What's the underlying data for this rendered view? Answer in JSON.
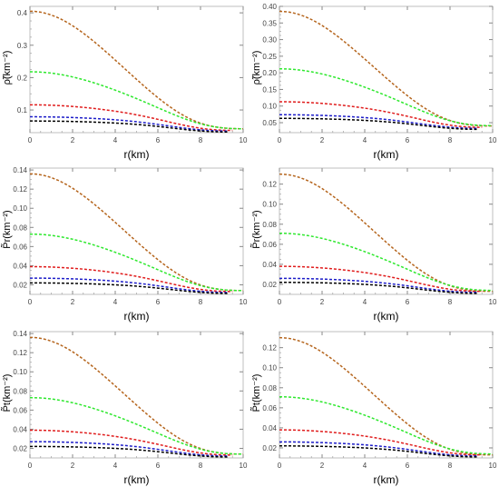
{
  "colors": {
    "brown": "#b5651d",
    "green": "#2ee82e",
    "red": "#e01c1c",
    "blue": "#1c1cc8",
    "black": "#000000",
    "frame": "#bfbfbf",
    "grid": "#e6e6e6"
  },
  "chart_data": [
    {
      "type": "line",
      "xlabel": "r(km)",
      "ylabel": "ρ̃(km⁻²)",
      "xlim": [
        0,
        10
      ],
      "ylim": [
        0.03,
        0.42
      ],
      "xticks": [
        0,
        2,
        4,
        6,
        8,
        10
      ],
      "yticks": [
        0.1,
        0.2,
        0.3,
        0.4
      ],
      "ytick_labels": [
        "0.1",
        "0.2",
        "0.3",
        "0.4"
      ],
      "dashed": true,
      "series": [
        {
          "color": "brown",
          "r_end": 10,
          "y0": 0.405,
          "y_end": 0.042,
          "width": 3.9
        },
        {
          "color": "green",
          "r_end": 10,
          "y0": 0.218,
          "y_end": 0.042,
          "width": 4.6
        },
        {
          "color": "red",
          "r_end": 9.5,
          "y0": 0.116,
          "y_end": 0.037,
          "width": 5.5
        },
        {
          "color": "blue",
          "r_end": 9.3,
          "y0": 0.079,
          "y_end": 0.035,
          "width": 6.2
        },
        {
          "color": "black",
          "r_end": 9.3,
          "y0": 0.066,
          "y_end": 0.032,
          "width": 6.8
        }
      ]
    },
    {
      "type": "line",
      "xlabel": "r(km)",
      "ylabel": "ρ̃(km⁻²)",
      "xlim": [
        0,
        10
      ],
      "ylim": [
        0.02,
        0.4
      ],
      "xticks": [
        0,
        2,
        4,
        6,
        8,
        10
      ],
      "yticks": [
        0.05,
        0.1,
        0.15,
        0.2,
        0.25,
        0.3,
        0.35,
        0.4
      ],
      "ytick_labels": [
        "0.05",
        "0.10",
        "0.15",
        "0.20",
        "0.25",
        "0.30",
        "0.35",
        "0.40"
      ],
      "dashed": true,
      "series": [
        {
          "color": "brown",
          "r_end": 10,
          "y0": 0.385,
          "y_end": 0.04,
          "width": 3.9
        },
        {
          "color": "green",
          "r_end": 10,
          "y0": 0.212,
          "y_end": 0.041,
          "width": 4.6
        },
        {
          "color": "red",
          "r_end": 9.5,
          "y0": 0.113,
          "y_end": 0.036,
          "width": 5.5
        },
        {
          "color": "blue",
          "r_end": 9.3,
          "y0": 0.074,
          "y_end": 0.033,
          "width": 6.2
        },
        {
          "color": "black",
          "r_end": 9.3,
          "y0": 0.063,
          "y_end": 0.03,
          "width": 6.8
        }
      ]
    },
    {
      "type": "line",
      "xlabel": "r(km)",
      "ylabel": "P̃r(km⁻²)",
      "xlim": [
        0,
        10
      ],
      "ylim": [
        0.01,
        0.142
      ],
      "xticks": [
        0,
        2,
        4,
        6,
        8,
        10
      ],
      "yticks": [
        0.02,
        0.04,
        0.06,
        0.08,
        0.1,
        0.12,
        0.14
      ],
      "ytick_labels": [
        "0.02",
        "0.04",
        "0.06",
        "0.08",
        "0.10",
        "0.12",
        "0.14"
      ],
      "dashed": true,
      "series": [
        {
          "color": "brown",
          "r_end": 10,
          "y0": 0.136,
          "y_end": 0.014,
          "width": 3.9
        },
        {
          "color": "green",
          "r_end": 10,
          "y0": 0.073,
          "y_end": 0.014,
          "width": 4.6
        },
        {
          "color": "red",
          "r_end": 9.5,
          "y0": 0.039,
          "y_end": 0.013,
          "width": 5.5
        },
        {
          "color": "blue",
          "r_end": 9.3,
          "y0": 0.027,
          "y_end": 0.012,
          "width": 6.2
        },
        {
          "color": "black",
          "r_end": 9.3,
          "y0": 0.022,
          "y_end": 0.011,
          "width": 6.8
        }
      ]
    },
    {
      "type": "line",
      "xlabel": "r(km)",
      "ylabel": "P̃r(km⁻²)",
      "xlim": [
        0,
        10
      ],
      "ylim": [
        0.01,
        0.136
      ],
      "xticks": [
        0,
        2,
        4,
        6,
        8,
        10
      ],
      "yticks": [
        0.02,
        0.04,
        0.06,
        0.08,
        0.1,
        0.12
      ],
      "ytick_labels": [
        "0.02",
        "0.04",
        "0.06",
        "0.08",
        "0.10",
        "0.12"
      ],
      "dashed": true,
      "series": [
        {
          "color": "brown",
          "r_end": 10,
          "y0": 0.13,
          "y_end": 0.013,
          "width": 3.9
        },
        {
          "color": "green",
          "r_end": 10,
          "y0": 0.071,
          "y_end": 0.014,
          "width": 4.6
        },
        {
          "color": "red",
          "r_end": 9.5,
          "y0": 0.038,
          "y_end": 0.013,
          "width": 5.5
        },
        {
          "color": "blue",
          "r_end": 9.3,
          "y0": 0.026,
          "y_end": 0.012,
          "width": 6.2
        },
        {
          "color": "black",
          "r_end": 9.3,
          "y0": 0.022,
          "y_end": 0.011,
          "width": 6.8
        }
      ]
    },
    {
      "type": "line",
      "xlabel": "r(km)",
      "ylabel": "P̃t(km⁻²)",
      "xlim": [
        0,
        10
      ],
      "ylim": [
        0.01,
        0.142
      ],
      "xticks": [
        0,
        2,
        4,
        6,
        8,
        10
      ],
      "yticks": [
        0.02,
        0.04,
        0.06,
        0.08,
        0.1,
        0.12,
        0.14
      ],
      "ytick_labels": [
        "0.02",
        "0.04",
        "0.06",
        "0.08",
        "0.10",
        "0.12",
        "0.14"
      ],
      "dashed": true,
      "series": [
        {
          "color": "brown",
          "r_end": 10,
          "y0": 0.136,
          "y_end": 0.014,
          "width": 3.9
        },
        {
          "color": "green",
          "r_end": 10,
          "y0": 0.073,
          "y_end": 0.014,
          "width": 4.6
        },
        {
          "color": "red",
          "r_end": 9.5,
          "y0": 0.039,
          "y_end": 0.013,
          "width": 5.5
        },
        {
          "color": "blue",
          "r_end": 9.3,
          "y0": 0.027,
          "y_end": 0.012,
          "width": 6.2
        },
        {
          "color": "black",
          "r_end": 9.3,
          "y0": 0.022,
          "y_end": 0.011,
          "width": 6.8
        }
      ]
    },
    {
      "type": "line",
      "xlabel": "r(km)",
      "ylabel": "P̃t(km⁻²)",
      "xlim": [
        0,
        10
      ],
      "ylim": [
        0.01,
        0.136
      ],
      "xticks": [
        0,
        2,
        4,
        6,
        8,
        10
      ],
      "yticks": [
        0.02,
        0.04,
        0.06,
        0.08,
        0.1,
        0.12
      ],
      "ytick_labels": [
        "0.02",
        "0.04",
        "0.06",
        "0.08",
        "0.10",
        "0.12"
      ],
      "dashed": true,
      "series": [
        {
          "color": "brown",
          "r_end": 10,
          "y0": 0.13,
          "y_end": 0.013,
          "width": 3.9
        },
        {
          "color": "green",
          "r_end": 10,
          "y0": 0.071,
          "y_end": 0.014,
          "width": 4.6
        },
        {
          "color": "red",
          "r_end": 9.5,
          "y0": 0.038,
          "y_end": 0.013,
          "width": 5.5
        },
        {
          "color": "blue",
          "r_end": 9.3,
          "y0": 0.026,
          "y_end": 0.012,
          "width": 6.2
        },
        {
          "color": "black",
          "r_end": 9.3,
          "y0": 0.022,
          "y_end": 0.011,
          "width": 6.8
        }
      ]
    }
  ]
}
